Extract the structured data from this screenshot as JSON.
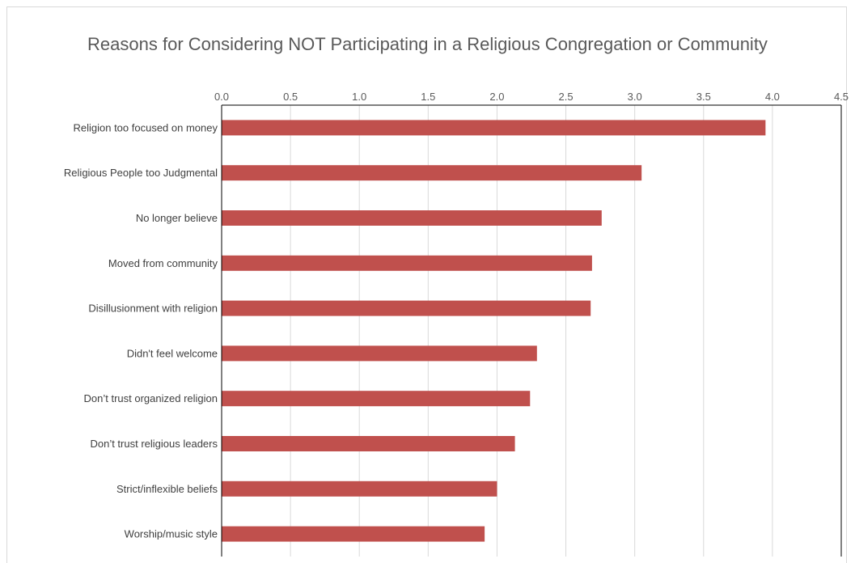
{
  "chart_data": {
    "type": "bar",
    "orientation": "horizontal",
    "title": "Reasons for Considering NOT Participating in a Religious Congregation or Community",
    "categories": [
      "Religion too focused on money",
      "Religious People too Judgmental",
      "No longer believe",
      "Moved from community",
      "Disillusionment with religion",
      "Didn't feel welcome",
      "Don’t trust organized religion",
      "Don’t trust religious leaders",
      "Strict/inflexible beliefs",
      "Worship/music style"
    ],
    "values": [
      3.95,
      3.05,
      2.76,
      2.69,
      2.68,
      2.29,
      2.24,
      2.13,
      2.0,
      1.91
    ],
    "xlim": [
      0,
      4.5
    ],
    "x_ticks": [
      "0.0",
      "0.5",
      "1.0",
      "1.5",
      "2.0",
      "2.5",
      "3.0",
      "3.5",
      "4.0",
      "4.5"
    ],
    "x_axis_position": "top",
    "grid": true,
    "legend": "none",
    "bar_color": "#c0504d",
    "grid_color": "#d9d9d9"
  }
}
